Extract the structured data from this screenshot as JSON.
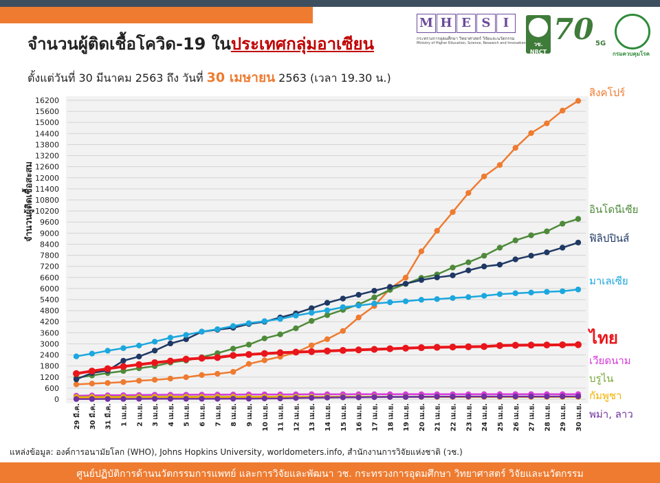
{
  "header": {
    "title_main": "จำนวนผู้ติดเชื้อโควิด-19 ใน",
    "title_highlight": "ประเทศกลุ่มอาเซียน",
    "subtitle_prefix": "ตั้งแต่วันที่ 30 มีนาคม 2563 ถึง วันที่",
    "subtitle_highlight": "30 เมษายน",
    "subtitle_suffix": "2563 (เวลา 19.30 น.)"
  },
  "logos": {
    "mhesi_letters": [
      "M",
      "H",
      "E",
      "S",
      "I"
    ],
    "mhesi_line1": "กระทรวงการอุดมศึกษา วิทยาศาสตร์ วิจัยและนวัตกรรม",
    "mhesi_line2": "Ministry of Higher Education, Science, Research and Innovation",
    "nrct_label": "วช. NRCT",
    "anniv_label": "70",
    "anniv_5g": "5G",
    "dmsc_label": "กรมควบคุมโรค"
  },
  "colors": {
    "singapore": "#ee7b30",
    "indonesia": "#4e8a3a",
    "philippines": "#1f3864",
    "malaysia": "#1ca7de",
    "thailand": "#e8161b",
    "vietnam": "#d63ad9",
    "brunei": "#7aa93a",
    "cambodia": "#f2b200",
    "myanmar_laos": "#7030a0",
    "accent": "#ee7b30"
  },
  "chart_data": {
    "type": "line",
    "ylabel": "จำนวนผู้ติดเชื้อสะสม",
    "ylim": [
      0,
      16200
    ],
    "yticks": [
      0,
      600,
      1200,
      1800,
      2400,
      3000,
      3600,
      4200,
      4800,
      5400,
      6000,
      6600,
      7200,
      7800,
      8400,
      9000,
      9600,
      10200,
      10800,
      11400,
      12000,
      12600,
      13200,
      13800,
      14400,
      15000,
      15600,
      16200
    ],
    "categories": [
      "29 มี.ค.",
      "30 มี.ค.",
      "31 มี.ค.",
      "1 เม.ย.",
      "2 เม.ย.",
      "3 เม.ย.",
      "4 เม.ย.",
      "5 เม.ย.",
      "6 เม.ย.",
      "7 เม.ย.",
      "8 เม.ย.",
      "9 เม.ย.",
      "10 เม.ย.",
      "11 เม.ย.",
      "12 เม.ย.",
      "13 เม.ย.",
      "14 เม.ย.",
      "15 เม.ย.",
      "16 เม.ย.",
      "17 เม.ย.",
      "18 เม.ย.",
      "19 เม.ย.",
      "20 เม.ย.",
      "21 เม.ย.",
      "22 เม.ย.",
      "23 เม.ย.",
      "24 เม.ย.",
      "25 เม.ย.",
      "26 เม.ย.",
      "27 เม.ย.",
      "28 เม.ย.",
      "29 เม.ย.",
      "30 เม.ย."
    ],
    "grid": true,
    "series": [
      {
        "name": "สิงคโปร์",
        "key": "singapore",
        "big": false,
        "values": [
          802,
          844,
          879,
          926,
          1000,
          1049,
          1114,
          1189,
          1309,
          1375,
          1481,
          1910,
          2108,
          2299,
          2532,
          2918,
          3252,
          3699,
          4427,
          5050,
          5992,
          6588,
          8014,
          9125,
          10141,
          11178,
          12075,
          12693,
          13624,
          14423,
          14951,
          15641,
          16169
        ]
      },
      {
        "name": "อินโดนีเซีย",
        "key": "indonesia",
        "big": false,
        "values": [
          1155,
          1285,
          1414,
          1528,
          1677,
          1790,
          1986,
          2092,
          2273,
          2491,
          2738,
          2956,
          3293,
          3512,
          3842,
          4241,
          4557,
          4839,
          5136,
          5516,
          5923,
          6248,
          6575,
          6760,
          7135,
          7418,
          7775,
          8211,
          8607,
          8882,
          9096,
          9511,
          9771
        ]
      },
      {
        "name": "ฟิลิปปินส์",
        "key": "philippines",
        "big": false,
        "values": [
          1075,
          1418,
          1546,
          2084,
          2311,
          2633,
          3018,
          3246,
          3660,
          3764,
          3870,
          4076,
          4195,
          4428,
          4648,
          4932,
          5223,
          5453,
          5660,
          5878,
          6087,
          6259,
          6459,
          6599,
          6710,
          6981,
          7192,
          7294,
          7579,
          7777,
          7958,
          8212,
          8488
        ]
      },
      {
        "name": "มาเลเซีย",
        "key": "malaysia",
        "big": false,
        "values": [
          2320,
          2470,
          2626,
          2766,
          2908,
          3116,
          3333,
          3483,
          3662,
          3793,
          3963,
          4119,
          4228,
          4346,
          4530,
          4683,
          4817,
          4987,
          5072,
          5182,
          5251,
          5305,
          5389,
          5425,
          5482,
          5532,
          5603,
          5691,
          5742,
          5780,
          5820,
          5851,
          5945
        ]
      },
      {
        "name": "ไทย",
        "key": "thailand",
        "big": true,
        "values": [
          1388,
          1524,
          1651,
          1771,
          1875,
          1978,
          2067,
          2169,
          2220,
          2258,
          2369,
          2423,
          2473,
          2518,
          2551,
          2579,
          2613,
          2643,
          2672,
          2700,
          2733,
          2765,
          2792,
          2811,
          2826,
          2839,
          2854,
          2907,
          2922,
          2931,
          2938,
          2947,
          2954
        ]
      },
      {
        "name": "เวียดนาม",
        "key": "vietnam",
        "big": false,
        "values": [
          188,
          203,
          212,
          218,
          227,
          237,
          240,
          241,
          245,
          249,
          251,
          255,
          257,
          258,
          262,
          265,
          266,
          267,
          268,
          268,
          268,
          268,
          268,
          268,
          268,
          268,
          270,
          270,
          270,
          270,
          270,
          270,
          270
        ]
      },
      {
        "name": "บรูไน",
        "key": "brunei",
        "big": false,
        "values": [
          120,
          127,
          129,
          131,
          133,
          134,
          135,
          135,
          135,
          135,
          135,
          136,
          136,
          136,
          136,
          136,
          136,
          136,
          136,
          136,
          136,
          136,
          138,
          138,
          138,
          138,
          138,
          138,
          138,
          138,
          138,
          138,
          138
        ]
      },
      {
        "name": "กัมพูชา",
        "key": "cambodia",
        "big": false,
        "values": [
          103,
          107,
          109,
          109,
          110,
          114,
          114,
          115,
          115,
          115,
          117,
          117,
          119,
          120,
          120,
          121,
          122,
          122,
          122,
          122,
          122,
          122,
          122,
          122,
          122,
          122,
          122,
          122,
          122,
          122,
          122,
          122,
          122
        ]
      },
      {
        "name": "พม่า, ลาว",
        "key": "myanmar_laos",
        "big": false,
        "values": [
          10,
          10,
          14,
          15,
          20,
          21,
          21,
          22,
          22,
          22,
          27,
          28,
          39,
          41,
          62,
          74,
          85,
          98,
          98,
          111,
          119,
          121,
          127,
          139,
          140,
          144,
          144,
          146,
          146,
          146,
          146,
          150,
          151
        ]
      }
    ],
    "legend_placement": "right"
  },
  "source_text": "แหล่งข้อมูล: องค์การอนามัยโลก (WHO), Johns Hopkins University, worldometers.info, สำนักงานการวิจัยแห่งชาติ (วช.)",
  "footer_text": "ศูนย์ปฏิบัติการด้านนวัตกรรมการแพทย์ และการวิจัยและพัฒนา วช.   กระทรวงการอุดมศึกษา วิทยาศาสตร์ วิจัยและนวัตกรรม"
}
